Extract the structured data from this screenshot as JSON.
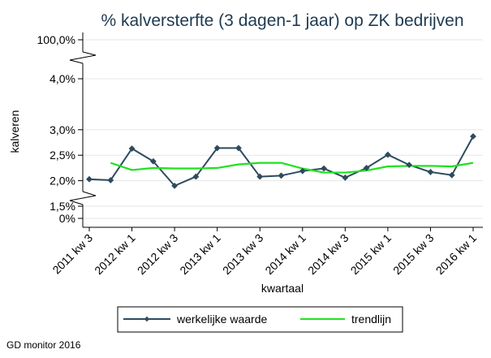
{
  "chart_data": {
    "type": "line",
    "title": "% kalversterfte (3 dagen-1 jaar) op ZK bedrijven",
    "xlabel": "kwartaal",
    "ylabel": "kalveren",
    "source": "GD monitor 2016",
    "y_ticks": [
      "100,0%",
      "4,0%",
      "3,0%",
      "2,5%",
      "2,0%",
      "1,5%",
      "0%"
    ],
    "x_tick_labels": [
      "2011 kw 3",
      "2012 kw 1",
      "2012 kw 3",
      "2013 kw 1",
      "2013 kw 3",
      "2014 kw 1",
      "2014 kw 3",
      "2015 kw 1",
      "2015 kw 3",
      "2016 kw 1"
    ],
    "x": [
      "2011 kw 3",
      "2011 kw 4",
      "2012 kw 1",
      "2012 kw 2",
      "2012 kw 3",
      "2012 kw 4",
      "2013 kw 1",
      "2013 kw 2",
      "2013 kw 3",
      "2013 kw 4",
      "2014 kw 1",
      "2014 kw 2",
      "2014 kw 3",
      "2014 kw 4",
      "2015 kw 1",
      "2015 kw 2",
      "2015 kw 3",
      "2015 kw 4",
      "2016 kw 1"
    ],
    "axis_breaks": [
      [
        4.0,
        100.0
      ],
      [
        0,
        1.5
      ]
    ],
    "grid": true,
    "legend_position": "bottom",
    "series": [
      {
        "name": "werkelijke waarde",
        "color": "#2e4b5e",
        "marker": "diamond",
        "values": [
          2.03,
          2.01,
          2.63,
          2.38,
          1.9,
          2.08,
          2.64,
          2.64,
          2.08,
          2.1,
          2.19,
          2.24,
          2.06,
          2.25,
          2.51,
          2.31,
          2.17,
          2.11,
          2.87
        ]
      },
      {
        "name": "trendlijn",
        "color": "#1fe21f",
        "marker": "none",
        "values": [
          null,
          2.35,
          2.21,
          2.25,
          2.24,
          2.24,
          2.25,
          2.32,
          2.35,
          2.35,
          2.24,
          2.16,
          2.16,
          2.2,
          2.28,
          2.29,
          2.29,
          2.28,
          2.35
        ]
      }
    ]
  }
}
